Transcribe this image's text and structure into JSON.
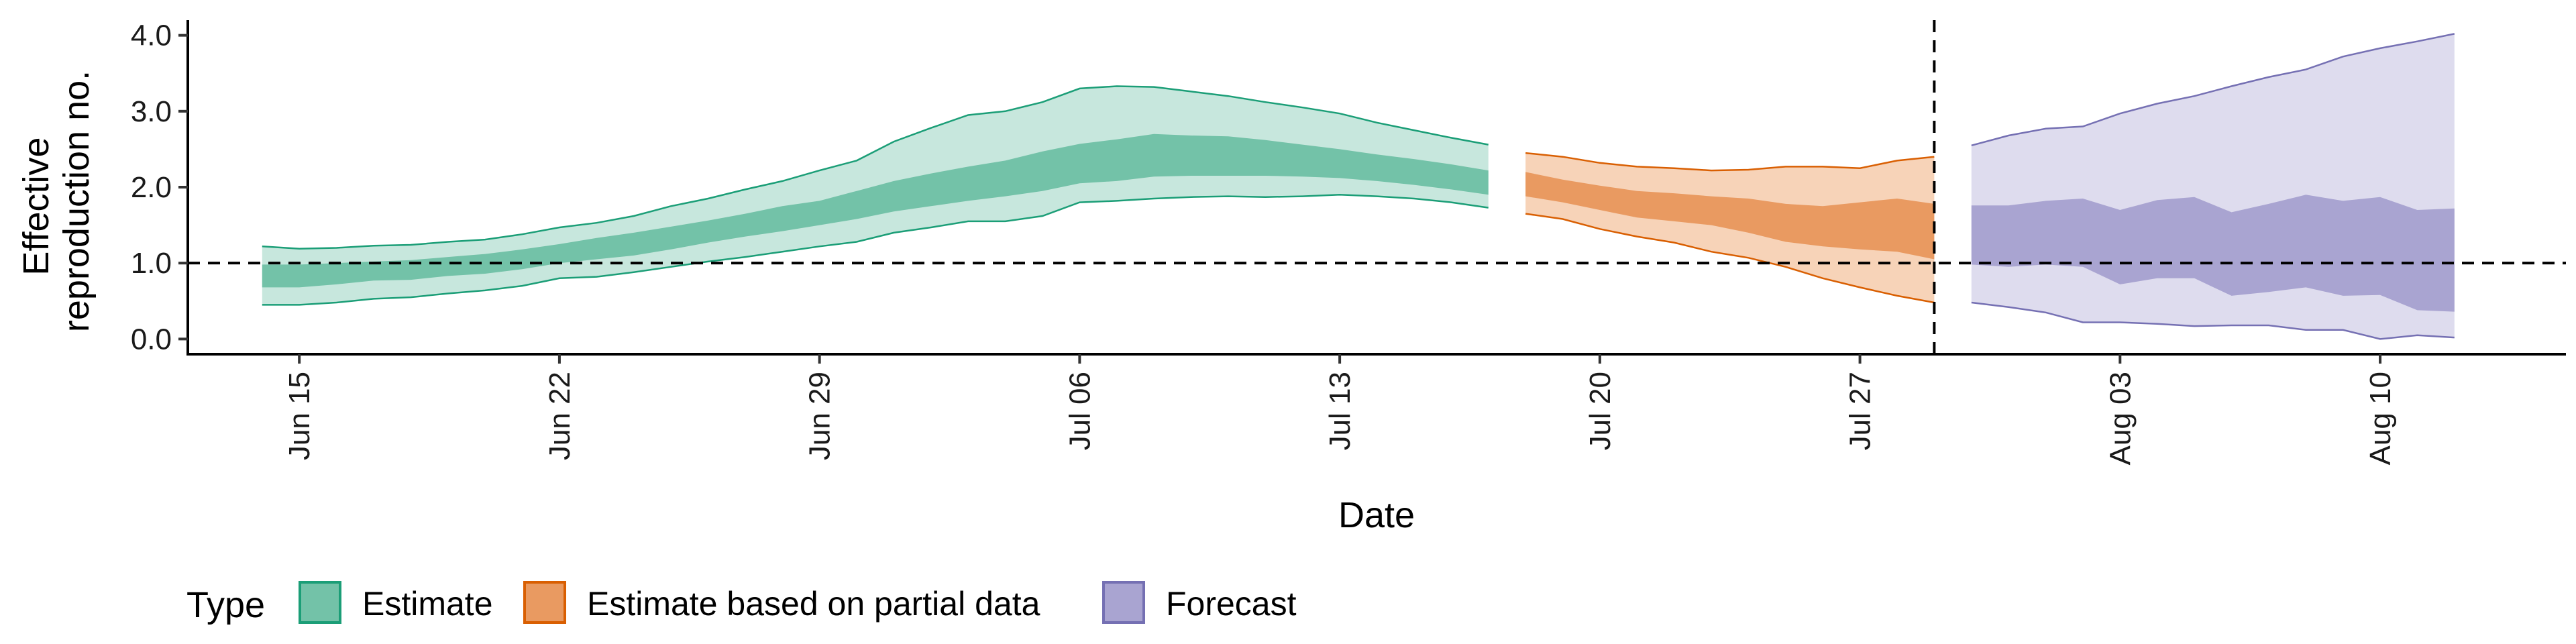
{
  "chart_data": {
    "type": "area",
    "xlabel": "Date",
    "ylabel": "Effective reproduction no.",
    "ylabel_lines": [
      "Effective",
      "reproduction no."
    ],
    "xlim": [
      "2020-06-12",
      "2020-08-15"
    ],
    "ylim": [
      -0.2,
      4.2
    ],
    "x_ticks": [
      {
        "date": "2020-06-15",
        "label": "Jun 15"
      },
      {
        "date": "2020-06-22",
        "label": "Jun 22"
      },
      {
        "date": "2020-06-29",
        "label": "Jun 29"
      },
      {
        "date": "2020-07-06",
        "label": "Jul 06"
      },
      {
        "date": "2020-07-13",
        "label": "Jul 13"
      },
      {
        "date": "2020-07-20",
        "label": "Jul 20"
      },
      {
        "date": "2020-07-27",
        "label": "Jul 27"
      },
      {
        "date": "2020-08-03",
        "label": "Aug 03"
      },
      {
        "date": "2020-08-10",
        "label": "Aug 10"
      }
    ],
    "y_ticks": [
      {
        "value": 0,
        "label": "0.0"
      },
      {
        "value": 1,
        "label": "1.0"
      },
      {
        "value": 2,
        "label": "2.0"
      },
      {
        "value": 3,
        "label": "3.0"
      },
      {
        "value": 4,
        "label": "4.0"
      }
    ],
    "reference_lines": {
      "horizontal": {
        "y": 1.0,
        "style": "dashed"
      },
      "vertical": {
        "x": "2020-07-29",
        "style": "dashed"
      }
    },
    "legend": {
      "title": "Type",
      "placement": "bottom-left"
    },
    "series": [
      {
        "name": "Estimate",
        "fill_outer": "#c7e7dd",
        "fill_inner": "#73c2a8",
        "stroke": "#1b9e77",
        "points": [
          {
            "x": "2020-06-14",
            "lo90": 0.45,
            "lo50": 0.68,
            "hi50": 0.98,
            "hi90": 1.22
          },
          {
            "x": "2020-06-15",
            "lo90": 0.45,
            "lo50": 0.68,
            "hi50": 0.98,
            "hi90": 1.19
          },
          {
            "x": "2020-06-16",
            "lo90": 0.48,
            "lo50": 0.72,
            "hi50": 1.0,
            "hi90": 1.2
          },
          {
            "x": "2020-06-17",
            "lo90": 0.53,
            "lo50": 0.77,
            "hi50": 1.02,
            "hi90": 1.23
          },
          {
            "x": "2020-06-18",
            "lo90": 0.55,
            "lo50": 0.78,
            "hi50": 1.04,
            "hi90": 1.24
          },
          {
            "x": "2020-06-19",
            "lo90": 0.6,
            "lo50": 0.83,
            "hi50": 1.08,
            "hi90": 1.28
          },
          {
            "x": "2020-06-20",
            "lo90": 0.64,
            "lo50": 0.86,
            "hi50": 1.12,
            "hi90": 1.31
          },
          {
            "x": "2020-06-21",
            "lo90": 0.7,
            "lo50": 0.92,
            "hi50": 1.18,
            "hi90": 1.38
          },
          {
            "x": "2020-06-22",
            "lo90": 0.8,
            "lo50": 1.0,
            "hi50": 1.25,
            "hi90": 1.47
          },
          {
            "x": "2020-06-23",
            "lo90": 0.82,
            "lo50": 1.05,
            "hi50": 1.33,
            "hi90": 1.53
          },
          {
            "x": "2020-06-24",
            "lo90": 0.88,
            "lo50": 1.1,
            "hi50": 1.4,
            "hi90": 1.62
          },
          {
            "x": "2020-06-25",
            "lo90": 0.95,
            "lo50": 1.18,
            "hi50": 1.48,
            "hi90": 1.75
          },
          {
            "x": "2020-06-26",
            "lo90": 1.02,
            "lo50": 1.27,
            "hi50": 1.56,
            "hi90": 1.85
          },
          {
            "x": "2020-06-27",
            "lo90": 1.08,
            "lo50": 1.35,
            "hi50": 1.65,
            "hi90": 1.97
          },
          {
            "x": "2020-06-28",
            "lo90": 1.15,
            "lo50": 1.42,
            "hi50": 1.75,
            "hi90": 2.08
          },
          {
            "x": "2020-06-29",
            "lo90": 1.22,
            "lo50": 1.5,
            "hi50": 1.82,
            "hi90": 2.22
          },
          {
            "x": "2020-06-30",
            "lo90": 1.28,
            "lo50": 1.58,
            "hi50": 1.95,
            "hi90": 2.35
          },
          {
            "x": "2020-07-01",
            "lo90": 1.4,
            "lo50": 1.68,
            "hi50": 2.08,
            "hi90": 2.6
          },
          {
            "x": "2020-07-02",
            "lo90": 1.47,
            "lo50": 1.75,
            "hi50": 2.18,
            "hi90": 2.78
          },
          {
            "x": "2020-07-03",
            "lo90": 1.55,
            "lo50": 1.82,
            "hi50": 2.27,
            "hi90": 2.95
          },
          {
            "x": "2020-07-04",
            "lo90": 1.55,
            "lo50": 1.88,
            "hi50": 2.35,
            "hi90": 3.0
          },
          {
            "x": "2020-07-05",
            "lo90": 1.62,
            "lo50": 1.95,
            "hi50": 2.47,
            "hi90": 3.12
          },
          {
            "x": "2020-07-06",
            "lo90": 1.8,
            "lo50": 2.05,
            "hi50": 2.57,
            "hi90": 3.3
          },
          {
            "x": "2020-07-07",
            "lo90": 1.82,
            "lo50": 2.08,
            "hi50": 2.63,
            "hi90": 3.33
          },
          {
            "x": "2020-07-08",
            "lo90": 1.85,
            "lo50": 2.14,
            "hi50": 2.7,
            "hi90": 3.32
          },
          {
            "x": "2020-07-09",
            "lo90": 1.87,
            "lo50": 2.15,
            "hi50": 2.68,
            "hi90": 3.26
          },
          {
            "x": "2020-07-10",
            "lo90": 1.88,
            "lo50": 2.15,
            "hi50": 2.67,
            "hi90": 3.2
          },
          {
            "x": "2020-07-11",
            "lo90": 1.87,
            "lo50": 2.15,
            "hi50": 2.62,
            "hi90": 3.12
          },
          {
            "x": "2020-07-12",
            "lo90": 1.88,
            "lo50": 2.14,
            "hi50": 2.56,
            "hi90": 3.05
          },
          {
            "x": "2020-07-13",
            "lo90": 1.9,
            "lo50": 2.12,
            "hi50": 2.5,
            "hi90": 2.97
          },
          {
            "x": "2020-07-14",
            "lo90": 1.88,
            "lo50": 2.08,
            "hi50": 2.43,
            "hi90": 2.85
          },
          {
            "x": "2020-07-15",
            "lo90": 1.85,
            "lo50": 2.03,
            "hi50": 2.37,
            "hi90": 2.75
          },
          {
            "x": "2020-07-16",
            "lo90": 1.8,
            "lo50": 1.97,
            "hi50": 2.3,
            "hi90": 2.65
          },
          {
            "x": "2020-07-17",
            "lo90": 1.73,
            "lo50": 1.9,
            "hi50": 2.22,
            "hi90": 2.56
          }
        ]
      },
      {
        "name": "Estimate based on partial data",
        "fill_outer": "#f7d3b8",
        "fill_inner": "#e99a61",
        "stroke": "#d95f02",
        "points": [
          {
            "x": "2020-07-18",
            "lo90": 1.65,
            "lo50": 1.88,
            "hi50": 2.2,
            "hi90": 2.45
          },
          {
            "x": "2020-07-19",
            "lo90": 1.58,
            "lo50": 1.8,
            "hi50": 2.1,
            "hi90": 2.4
          },
          {
            "x": "2020-07-20",
            "lo90": 1.45,
            "lo50": 1.7,
            "hi50": 2.02,
            "hi90": 2.32
          },
          {
            "x": "2020-07-21",
            "lo90": 1.35,
            "lo50": 1.6,
            "hi50": 1.95,
            "hi90": 2.27
          },
          {
            "x": "2020-07-22",
            "lo90": 1.27,
            "lo50": 1.55,
            "hi50": 1.92,
            "hi90": 2.25
          },
          {
            "x": "2020-07-23",
            "lo90": 1.15,
            "lo50": 1.5,
            "hi50": 1.88,
            "hi90": 2.22
          },
          {
            "x": "2020-07-24",
            "lo90": 1.07,
            "lo50": 1.4,
            "hi50": 1.85,
            "hi90": 2.23
          },
          {
            "x": "2020-07-25",
            "lo90": 0.95,
            "lo50": 1.28,
            "hi50": 1.78,
            "hi90": 2.27
          },
          {
            "x": "2020-07-26",
            "lo90": 0.8,
            "lo50": 1.22,
            "hi50": 1.75,
            "hi90": 2.27
          },
          {
            "x": "2020-07-27",
            "lo90": 0.68,
            "lo50": 1.18,
            "hi50": 1.8,
            "hi90": 2.25
          },
          {
            "x": "2020-07-28",
            "lo90": 0.57,
            "lo50": 1.15,
            "hi50": 1.85,
            "hi90": 2.35
          },
          {
            "x": "2020-07-29",
            "lo90": 0.48,
            "lo50": 1.05,
            "hi50": 1.78,
            "hi90": 2.4
          }
        ]
      },
      {
        "name": "Forecast",
        "fill_outer": "#dedcee",
        "fill_inner": "#a9a4d1",
        "stroke": "#7570b3",
        "points": [
          {
            "x": "2020-07-30",
            "lo90": 0.48,
            "lo50": 0.98,
            "hi50": 1.76,
            "hi90": 2.55
          },
          {
            "x": "2020-07-31",
            "lo90": 0.42,
            "lo50": 0.95,
            "hi50": 1.76,
            "hi90": 2.68
          },
          {
            "x": "2020-08-01",
            "lo90": 0.35,
            "lo50": 0.98,
            "hi50": 1.82,
            "hi90": 2.77
          },
          {
            "x": "2020-08-02",
            "lo90": 0.22,
            "lo50": 0.95,
            "hi50": 1.85,
            "hi90": 2.8
          },
          {
            "x": "2020-08-03",
            "lo90": 0.22,
            "lo50": 0.72,
            "hi50": 1.7,
            "hi90": 2.97
          },
          {
            "x": "2020-08-04",
            "lo90": 0.2,
            "lo50": 0.8,
            "hi50": 1.83,
            "hi90": 3.1
          },
          {
            "x": "2020-08-05",
            "lo90": 0.17,
            "lo50": 0.8,
            "hi50": 1.87,
            "hi90": 3.2
          },
          {
            "x": "2020-08-06",
            "lo90": 0.18,
            "lo50": 0.57,
            "hi50": 1.67,
            "hi90": 3.33
          },
          {
            "x": "2020-08-07",
            "lo90": 0.18,
            "lo50": 0.62,
            "hi50": 1.78,
            "hi90": 3.45
          },
          {
            "x": "2020-08-08",
            "lo90": 0.12,
            "lo50": 0.68,
            "hi50": 1.9,
            "hi90": 3.55
          },
          {
            "x": "2020-08-09",
            "lo90": 0.12,
            "lo50": 0.57,
            "hi50": 1.82,
            "hi90": 3.72
          },
          {
            "x": "2020-08-10",
            "lo90": 0.0,
            "lo50": 0.58,
            "hi50": 1.87,
            "hi90": 3.83
          },
          {
            "x": "2020-08-11",
            "lo90": 0.05,
            "lo50": 0.38,
            "hi50": 1.7,
            "hi90": 3.92
          },
          {
            "x": "2020-08-12",
            "lo90": 0.02,
            "lo50": 0.36,
            "hi50": 1.72,
            "hi90": 4.02
          }
        ]
      }
    ]
  }
}
